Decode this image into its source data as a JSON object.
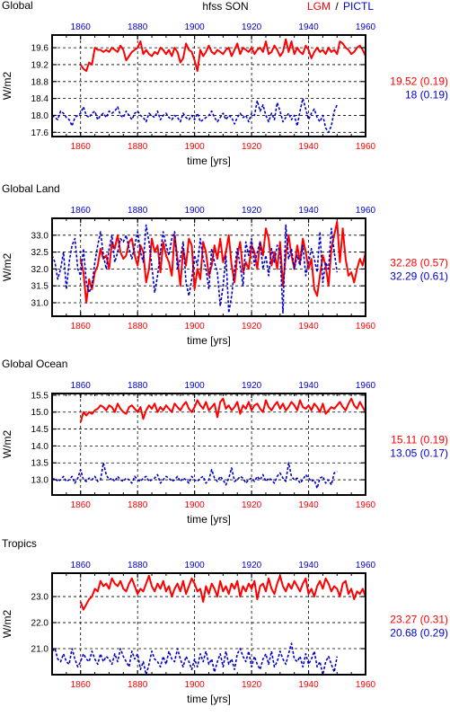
{
  "header": {
    "variable": "hfss SON",
    "lgm_label": "LGM",
    "separator": "/",
    "pictl_label": "PICTL"
  },
  "colors": {
    "lgm": "#ff0000",
    "pictl": "#0000cc",
    "axis": "#000000",
    "grid": "#000000"
  },
  "chart_data": [
    {
      "type": "line",
      "title": "Global",
      "xlabel": "time [yrs]",
      "ylabel": "W/m2",
      "xlim": [
        1850,
        1960
      ],
      "ylim": [
        17.5,
        19.9
      ],
      "xticks": [
        1860,
        1880,
        1900,
        1920,
        1940,
        1960
      ],
      "xtick_labels": [
        "1860",
        "1880",
        "1900",
        "1920",
        "1940",
        "1960"
      ],
      "yticks": [
        17.6,
        18.0,
        18.4,
        18.8,
        19.2,
        19.6
      ],
      "ytick_labels": [
        "17.6",
        "18.0",
        "18.4",
        "18.8",
        "19.2",
        "19.6"
      ],
      "grid": true,
      "stats": {
        "lgm": "19.52 (0.19)",
        "pictl": "18 (0.19)"
      },
      "series": [
        {
          "name": "LGM",
          "x_start": 1860,
          "x_end": 1960,
          "values": [
            19.2,
            19.1,
            19.05,
            19.25,
            19.2,
            19.6,
            19.55,
            19.55,
            19.5,
            19.55,
            19.5,
            19.6,
            19.55,
            19.5,
            19.65,
            19.55,
            19.3,
            19.4,
            19.5,
            19.55,
            19.6,
            19.75,
            19.45,
            19.55,
            19.45,
            19.4,
            19.5,
            19.45,
            19.6,
            19.55,
            19.45,
            19.55,
            19.4,
            19.6,
            19.5,
            19.25,
            19.35,
            19.7,
            19.55,
            19.5,
            19.3,
            19.05,
            19.55,
            19.4,
            19.5,
            19.65,
            19.5,
            19.45,
            19.55,
            19.5,
            19.45,
            19.55,
            19.6,
            19.4,
            19.55,
            19.7,
            19.45,
            19.6,
            19.55,
            19.5,
            19.6,
            19.45,
            19.55,
            19.6,
            19.5,
            19.75,
            19.45,
            19.5,
            19.65,
            19.55,
            19.4,
            19.5,
            19.8,
            19.5,
            19.75,
            19.45,
            19.6,
            19.5,
            19.45,
            19.65,
            19.55,
            19.35,
            19.5,
            19.6,
            19.5,
            19.55,
            19.45,
            19.6,
            19.5,
            19.55,
            19.45,
            19.75,
            19.7,
            19.6,
            19.55,
            19.45,
            19.5,
            19.6,
            19.65,
            19.55,
            19.4
          ]
        },
        {
          "name": "PICTL",
          "x_start": 1850,
          "x_end": 1950,
          "values": [
            18.0,
            17.95,
            17.9,
            18.1,
            18.05,
            17.95,
            17.9,
            17.75,
            17.95,
            18.0,
            18.05,
            18.2,
            18.0,
            17.95,
            18.05,
            18.1,
            17.9,
            18.0,
            18.05,
            17.95,
            18.1,
            18.05,
            18.1,
            18.2,
            18.0,
            17.95,
            18.1,
            18.0,
            17.9,
            18.05,
            18.1,
            18.0,
            17.95,
            17.85,
            18.05,
            18.0,
            17.95,
            18.1,
            17.9,
            18.0,
            18.05,
            17.95,
            17.9,
            18.0,
            17.95,
            17.85,
            18.05,
            17.95,
            17.9,
            18.0,
            17.9,
            18.05,
            17.85,
            17.9,
            17.95,
            18.0,
            18.1,
            17.95,
            17.85,
            17.95,
            18.05,
            17.9,
            18.0,
            17.95,
            17.8,
            17.95,
            18.05,
            17.95,
            18.0,
            17.85,
            18.05,
            18.0,
            18.35,
            18.1,
            18.25,
            18.0,
            17.85,
            18.05,
            17.9,
            18.3,
            18.1,
            17.85,
            17.95,
            18.05,
            17.9,
            18.0,
            17.75,
            18.1,
            18.4,
            18.15,
            17.9,
            18.05,
            18.15,
            17.95,
            17.85,
            18.0,
            17.7,
            17.6,
            17.75,
            18.1,
            18.25
          ]
        }
      ]
    },
    {
      "type": "line",
      "title": "Global Land",
      "xlabel": "time [yrs]",
      "ylabel": "W/m2",
      "xlim": [
        1850,
        1960
      ],
      "ylim": [
        30.6,
        33.5
      ],
      "xticks": [
        1860,
        1880,
        1900,
        1920,
        1940,
        1960
      ],
      "xtick_labels": [
        "1860",
        "1880",
        "1900",
        "1920",
        "1940",
        "1960"
      ],
      "yticks": [
        31.0,
        31.5,
        32.0,
        32.5,
        33.0
      ],
      "ytick_labels": [
        "31.0",
        "31.5",
        "32.0",
        "32.5",
        "33.0"
      ],
      "grid": true,
      "stats": {
        "lgm": "32.28 (0.57)",
        "pictl": "32.29 (0.61)"
      },
      "series": [
        {
          "name": "LGM",
          "x_start": 1860,
          "x_end": 1960,
          "values": [
            32.3,
            31.9,
            31.0,
            31.7,
            31.4,
            31.9,
            32.1,
            32.6,
            32.3,
            32.4,
            32.0,
            32.8,
            32.6,
            33.0,
            32.5,
            32.3,
            32.4,
            32.8,
            32.9,
            32.4,
            32.1,
            32.7,
            32.5,
            31.6,
            32.0,
            32.9,
            32.5,
            32.7,
            31.9,
            32.8,
            32.4,
            32.2,
            31.8,
            33.0,
            32.3,
            31.5,
            32.6,
            32.1,
            32.9,
            32.7,
            31.4,
            32.0,
            31.7,
            32.8,
            32.5,
            31.8,
            32.1,
            32.7,
            32.3,
            32.9,
            32.2,
            32.5,
            33.0,
            32.1,
            31.6,
            32.4,
            32.8,
            31.9,
            32.2,
            32.0,
            32.7,
            32.5,
            32.0,
            32.8,
            32.4,
            33.2,
            32.9,
            32.1,
            32.5,
            32.0,
            32.8,
            31.5,
            32.4,
            33.0,
            32.4,
            32.0,
            32.7,
            32.2,
            32.9,
            32.5,
            32.0,
            32.3,
            31.4,
            31.2,
            31.8,
            32.4,
            32.1,
            31.5,
            32.6,
            33.0,
            33.4,
            32.2,
            33.2,
            32.3,
            31.8,
            31.9,
            31.6,
            32.0,
            32.3,
            32.1,
            32.5
          ]
        },
        {
          "name": "PICTL",
          "x_start": 1850,
          "x_end": 1950,
          "values": [
            32.4,
            32.2,
            31.7,
            32.0,
            32.5,
            31.4,
            32.2,
            32.7,
            32.9,
            32.0,
            31.8,
            32.6,
            31.6,
            31.3,
            31.5,
            32.2,
            32.7,
            33.1,
            32.4,
            32.0,
            32.6,
            33.0,
            32.2,
            32.5,
            32.9,
            32.8,
            33.0,
            32.6,
            32.3,
            32.7,
            33.1,
            32.5,
            32.2,
            33.3,
            32.8,
            32.1,
            31.3,
            31.8,
            32.5,
            33.1,
            32.7,
            32.4,
            32.9,
            33.1,
            32.0,
            32.3,
            32.8,
            31.6,
            31.2,
            31.7,
            32.4,
            32.1,
            32.9,
            32.3,
            32.0,
            31.4,
            32.6,
            32.2,
            31.9,
            30.9,
            31.5,
            32.4,
            30.7,
            31.2,
            32.0,
            32.6,
            32.1,
            31.5,
            32.8,
            32.4,
            32.9,
            32.1,
            32.5,
            32.8,
            32.0,
            32.4,
            31.8,
            32.6,
            32.2,
            32.7,
            32.5,
            30.7,
            33.3,
            32.3,
            32.6,
            32.0,
            32.4,
            32.1,
            32.7,
            31.8,
            32.2,
            32.6,
            32.3,
            31.9,
            33.1,
            31.6,
            32.2,
            32.0,
            33.2,
            32.5,
            31.9
          ]
        }
      ]
    },
    {
      "type": "line",
      "title": "Global Ocean",
      "xlabel": "time [yrs]",
      "ylabel": "W/m2",
      "xlim": [
        1850,
        1960
      ],
      "ylim": [
        12.55,
        15.55
      ],
      "xticks": [
        1860,
        1880,
        1900,
        1920,
        1940,
        1960
      ],
      "xtick_labels": [
        "1860",
        "1880",
        "1900",
        "1920",
        "1940",
        "1960"
      ],
      "yticks": [
        13.0,
        13.5,
        14.0,
        14.5,
        15.0,
        15.5
      ],
      "ytick_labels": [
        "13.0",
        "13.5",
        "14.0",
        "14.5",
        "15.0",
        "15.5"
      ],
      "grid": true,
      "stats": {
        "lgm": "15.11 (0.19)",
        "pictl": "13.05 (0.17)"
      },
      "series": [
        {
          "name": "LGM",
          "x_start": 1860,
          "x_end": 1960,
          "values": [
            14.7,
            15.0,
            14.9,
            15.0,
            14.95,
            15.05,
            15.1,
            15.2,
            15.15,
            15.05,
            15.2,
            15.15,
            15.0,
            15.25,
            15.1,
            15.0,
            14.95,
            15.15,
            15.2,
            15.1,
            15.0,
            15.15,
            14.8,
            15.05,
            15.2,
            15.1,
            15.25,
            15.0,
            15.15,
            15.05,
            15.2,
            15.1,
            15.0,
            15.25,
            15.15,
            15.05,
            15.2,
            15.3,
            15.1,
            15.0,
            15.15,
            15.35,
            15.2,
            15.1,
            15.3,
            15.05,
            15.15,
            15.25,
            14.85,
            15.3,
            15.4,
            15.1,
            15.2,
            15.05,
            15.15,
            15.3,
            14.95,
            15.2,
            15.1,
            15.3,
            15.05,
            15.2,
            15.25,
            15.1,
            15.0,
            15.35,
            15.15,
            15.05,
            15.2,
            15.3,
            15.1,
            15.25,
            15.05,
            15.15,
            15.3,
            15.2,
            15.05,
            15.35,
            15.15,
            15.1,
            15.2,
            15.05,
            15.25,
            15.15,
            15.0,
            15.25,
            14.95,
            15.05,
            15.15,
            15.1,
            15.2,
            15.3,
            15.15,
            15.05,
            15.25,
            15.4,
            15.2,
            15.1,
            15.3,
            15.15,
            15.0
          ]
        },
        {
          "name": "PICTL",
          "x_start": 1850,
          "x_end": 1950,
          "values": [
            13.0,
            13.05,
            12.95,
            13.0,
            13.1,
            12.95,
            13.0,
            13.1,
            12.9,
            13.05,
            13.3,
            13.0,
            12.95,
            13.05,
            13.0,
            13.1,
            12.95,
            13.0,
            13.5,
            13.15,
            13.0,
            13.05,
            12.95,
            13.1,
            13.0,
            12.95,
            13.05,
            13.0,
            12.9,
            13.1,
            13.0,
            12.95,
            13.05,
            13.1,
            12.95,
            13.0,
            13.05,
            13.15,
            12.9,
            13.0,
            13.1,
            13.05,
            12.95,
            13.0,
            13.1,
            12.95,
            13.05,
            13.0,
            12.9,
            13.1,
            13.0,
            12.95,
            13.05,
            13.1,
            12.9,
            13.0,
            13.3,
            13.05,
            12.95,
            13.1,
            13.0,
            12.85,
            13.05,
            13.35,
            12.95,
            13.0,
            13.1,
            13.05,
            12.9,
            13.0,
            13.05,
            12.95,
            13.1,
            13.0,
            13.15,
            12.95,
            13.05,
            13.0,
            12.9,
            13.1,
            13.2,
            13.05,
            12.95,
            13.5,
            13.1,
            13.0,
            13.05,
            12.9,
            13.0,
            13.15,
            13.05,
            12.95,
            13.0,
            12.75,
            13.05,
            13.1,
            12.9,
            13.0,
            12.85,
            13.2,
            13.25
          ]
        }
      ]
    },
    {
      "type": "line",
      "title": "Tropics",
      "xlabel": "time [yrs]",
      "ylabel": "W/m2",
      "xlim": [
        1850,
        1960
      ],
      "ylim": [
        20.0,
        23.9
      ],
      "xticks": [
        1860,
        1880,
        1900,
        1920,
        1940,
        1960
      ],
      "xtick_labels": [
        "1860",
        "1880",
        "1900",
        "1920",
        "1940",
        "1960"
      ],
      "yticks": [
        21.0,
        22.0,
        23.0
      ],
      "ytick_labels": [
        "21.0",
        "22.0",
        "23.0"
      ],
      "grid": true,
      "stats": {
        "lgm": "23.27 (0.31)",
        "pictl": "20.68 (0.29)"
      },
      "series": [
        {
          "name": "LGM",
          "x_start": 1860,
          "x_end": 1960,
          "values": [
            22.8,
            22.5,
            22.7,
            22.9,
            23.0,
            23.3,
            23.2,
            23.6,
            23.4,
            23.5,
            23.3,
            23.7,
            23.5,
            23.4,
            23.6,
            23.3,
            23.2,
            23.5,
            23.7,
            23.4,
            23.1,
            23.3,
            23.2,
            23.5,
            23.8,
            23.4,
            23.2,
            23.5,
            23.3,
            23.6,
            23.2,
            23.4,
            23.0,
            23.3,
            23.5,
            23.2,
            23.6,
            23.1,
            23.4,
            23.7,
            23.5,
            23.2,
            23.3,
            22.8,
            23.4,
            23.1,
            23.5,
            23.3,
            23.0,
            23.6,
            23.2,
            23.4,
            23.1,
            23.5,
            23.3,
            23.6,
            23.0,
            23.4,
            23.2,
            23.5,
            23.3,
            23.6,
            22.9,
            23.4,
            23.5,
            23.2,
            23.7,
            23.3,
            23.1,
            23.5,
            23.8,
            23.4,
            23.2,
            23.5,
            23.3,
            23.6,
            23.4,
            23.2,
            23.5,
            23.7,
            23.1,
            23.3,
            23.0,
            23.4,
            23.6,
            23.3,
            23.7,
            23.5,
            23.2,
            23.4,
            23.3,
            23.0,
            23.5,
            23.6,
            23.1,
            23.3,
            22.9,
            23.2,
            23.1,
            23.3,
            23.0
          ]
        },
        {
          "name": "PICTL",
          "x_start": 1850,
          "x_end": 1950,
          "values": [
            20.9,
            21.0,
            20.6,
            20.5,
            20.8,
            20.5,
            20.4,
            21.0,
            20.6,
            20.3,
            20.5,
            20.8,
            20.6,
            20.5,
            20.9,
            20.6,
            20.4,
            20.8,
            20.5,
            20.7,
            20.6,
            20.4,
            20.8,
            20.5,
            21.0,
            20.7,
            20.5,
            20.3,
            20.9,
            20.6,
            20.8,
            20.2,
            20.5,
            20.0,
            20.4,
            20.9,
            20.6,
            20.5,
            20.3,
            20.7,
            20.4,
            20.9,
            20.6,
            20.5,
            21.0,
            20.6,
            20.3,
            20.7,
            20.5,
            20.2,
            20.6,
            20.3,
            20.8,
            20.5,
            20.9,
            20.4,
            20.6,
            20.1,
            20.5,
            20.8,
            20.3,
            20.9,
            20.4,
            20.6,
            20.2,
            20.8,
            21.0,
            20.7,
            20.5,
            20.9,
            20.3,
            20.7,
            20.4,
            20.2,
            20.6,
            20.8,
            20.4,
            20.9,
            20.3,
            20.5,
            20.9,
            20.6,
            20.4,
            20.8,
            21.2,
            20.6,
            20.5,
            20.7,
            20.3,
            20.8,
            20.4,
            20.6,
            20.9,
            20.3,
            20.5,
            20.0,
            20.5,
            20.7,
            20.4,
            20.1,
            20.7
          ]
        }
      ]
    }
  ]
}
